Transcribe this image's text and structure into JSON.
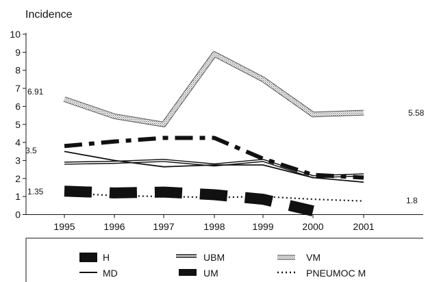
{
  "chart_data": {
    "type": "line",
    "title": "",
    "ylabel": "Incidence",
    "xlabel": "",
    "x": [
      "1995",
      "1996",
      "1997",
      "1998",
      "1999",
      "2000",
      "2001"
    ],
    "ylim": [
      0,
      10
    ],
    "yticks": [
      "0",
      "1",
      "2",
      "3",
      "4",
      "5",
      "6",
      "7",
      "8",
      "9",
      "10"
    ],
    "grid": false,
    "legend_position": "bottom",
    "series": [
      {
        "name": "H",
        "style": "thick-dash-black",
        "values": [
          1.3,
          1.2,
          1.25,
          1.1,
          0.85,
          0.2,
          null
        ]
      },
      {
        "name": "MD",
        "style": "solid-thin-black",
        "values": [
          3.5,
          3.0,
          2.65,
          2.75,
          2.75,
          2.05,
          1.8
        ]
      },
      {
        "name": "UBM",
        "style": "double-line-black",
        "values": [
          2.85,
          2.9,
          3.0,
          2.75,
          3.0,
          2.1,
          2.2
        ]
      },
      {
        "name": "UM",
        "style": "dash-dot-heavy-black",
        "values": [
          3.8,
          4.05,
          4.25,
          4.25,
          3.1,
          2.2,
          2.05
        ]
      },
      {
        "name": "VM",
        "style": "hatched-gray",
        "values": [
          6.4,
          5.45,
          5.0,
          8.9,
          7.5,
          5.55,
          5.65
        ]
      },
      {
        "name": "PNEUMOC M",
        "style": "dotted-black",
        "values": [
          1.2,
          1.05,
          1.0,
          0.95,
          1.0,
          0.85,
          0.75
        ]
      }
    ],
    "annotations": [
      {
        "text": "6.91"
      },
      {
        "text": "3.5"
      },
      {
        "text": "1.35"
      },
      {
        "text": "5.58"
      },
      {
        "text": "1.8"
      }
    ]
  }
}
